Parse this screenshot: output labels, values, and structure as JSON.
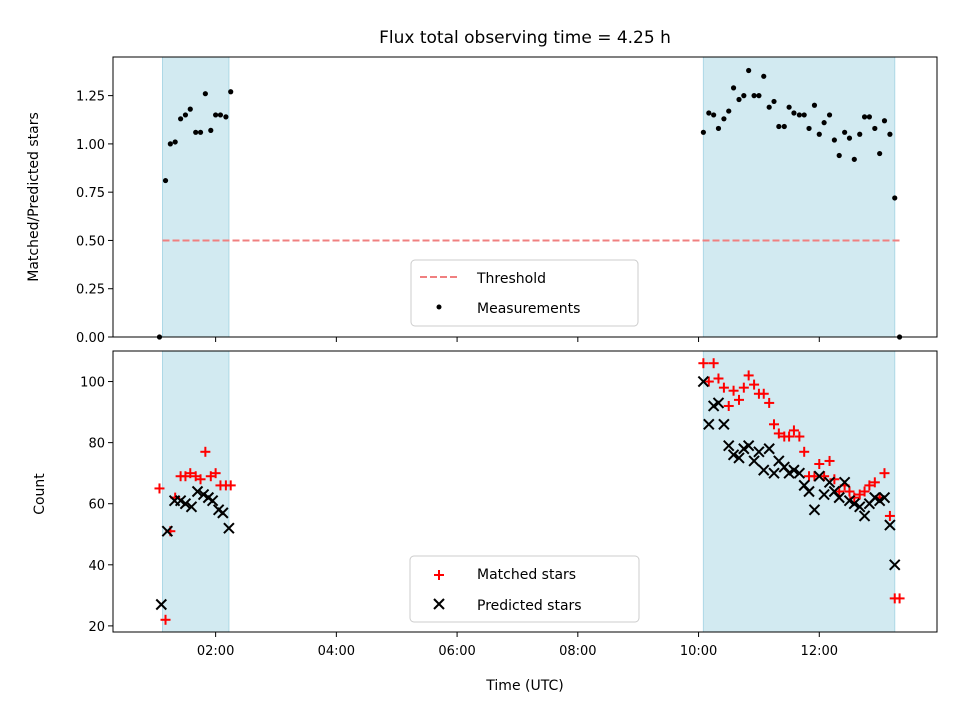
{
  "chart_data": {
    "type": "scatter",
    "title": "Flux total observing time = 4.25 h",
    "xlabel": "Time (UTC)",
    "x_unit": "hours_utc",
    "xlim": [
      0.3,
      13.95
    ],
    "x_ticks": [
      2,
      4,
      6,
      8,
      10,
      12
    ],
    "x_tick_labels": [
      "02:00",
      "04:00",
      "06:00",
      "08:00",
      "10:00",
      "12:00"
    ],
    "observing_windows": [
      [
        1.12,
        2.22
      ],
      [
        10.08,
        13.25
      ]
    ],
    "colors": {
      "window": "#add8e6",
      "threshold": "#f08080",
      "matched": "#ff0000",
      "predicted": "#000000",
      "measurement": "#000000"
    },
    "panels": [
      {
        "ylabel": "Matched/Predicted stars",
        "ylim": [
          0,
          1.45
        ],
        "y_ticks": [
          0.0,
          0.25,
          0.5,
          0.75,
          1.0,
          1.25
        ],
        "y_tick_labels": [
          "0.00",
          "0.25",
          "0.50",
          "0.75",
          "1.00",
          "1.25"
        ],
        "legend_position": "lower-center",
        "threshold": {
          "name": "Threshold",
          "value": 0.5,
          "x_range": [
            1.12,
            13.35
          ]
        },
        "series": [
          {
            "name": "Measurements",
            "marker": "dot",
            "points": [
              [
                1.07,
                0.0
              ],
              [
                1.17,
                0.81
              ],
              [
                1.25,
                1.0
              ],
              [
                1.33,
                1.01
              ],
              [
                1.42,
                1.13
              ],
              [
                1.5,
                1.15
              ],
              [
                1.58,
                1.18
              ],
              [
                1.67,
                1.06
              ],
              [
                1.75,
                1.06
              ],
              [
                1.83,
                1.26
              ],
              [
                1.92,
                1.07
              ],
              [
                2.0,
                1.15
              ],
              [
                2.08,
                1.15
              ],
              [
                2.17,
                1.14
              ],
              [
                2.25,
                1.27
              ],
              [
                10.08,
                1.06
              ],
              [
                10.17,
                1.16
              ],
              [
                10.25,
                1.15
              ],
              [
                10.33,
                1.08
              ],
              [
                10.42,
                1.13
              ],
              [
                10.5,
                1.17
              ],
              [
                10.58,
                1.29
              ],
              [
                10.67,
                1.23
              ],
              [
                10.75,
                1.25
              ],
              [
                10.83,
                1.38
              ],
              [
                10.92,
                1.25
              ],
              [
                11.0,
                1.25
              ],
              [
                11.08,
                1.35
              ],
              [
                11.17,
                1.19
              ],
              [
                11.25,
                1.22
              ],
              [
                11.33,
                1.09
              ],
              [
                11.42,
                1.09
              ],
              [
                11.5,
                1.19
              ],
              [
                11.58,
                1.16
              ],
              [
                11.67,
                1.15
              ],
              [
                11.75,
                1.15
              ],
              [
                11.83,
                1.08
              ],
              [
                11.92,
                1.2
              ],
              [
                12.0,
                1.05
              ],
              [
                12.08,
                1.11
              ],
              [
                12.17,
                1.15
              ],
              [
                12.25,
                1.02
              ],
              [
                12.33,
                0.94
              ],
              [
                12.42,
                1.06
              ],
              [
                12.5,
                1.03
              ],
              [
                12.58,
                0.92
              ],
              [
                12.67,
                1.05
              ],
              [
                12.75,
                1.14
              ],
              [
                12.83,
                1.14
              ],
              [
                12.92,
                1.08
              ],
              [
                13.0,
                0.95
              ],
              [
                13.08,
                1.12
              ],
              [
                13.17,
                1.05
              ],
              [
                13.25,
                0.72
              ],
              [
                13.33,
                0.0
              ]
            ]
          }
        ]
      },
      {
        "ylabel": "Count",
        "ylim": [
          18,
          110
        ],
        "y_ticks": [
          20,
          40,
          60,
          80,
          100
        ],
        "y_tick_labels": [
          "20",
          "40",
          "60",
          "80",
          "100"
        ],
        "legend_position": "lower-center",
        "series": [
          {
            "name": "Matched stars",
            "marker": "plus",
            "points": [
              [
                1.07,
                65
              ],
              [
                1.17,
                22
              ],
              [
                1.25,
                51
              ],
              [
                1.33,
                62
              ],
              [
                1.42,
                69
              ],
              [
                1.5,
                69
              ],
              [
                1.58,
                70
              ],
              [
                1.67,
                69
              ],
              [
                1.75,
                68
              ],
              [
                1.83,
                77
              ],
              [
                1.92,
                69
              ],
              [
                2.0,
                70
              ],
              [
                2.08,
                66
              ],
              [
                2.17,
                66
              ],
              [
                2.25,
                66
              ],
              [
                10.08,
                106
              ],
              [
                10.17,
                100
              ],
              [
                10.25,
                106
              ],
              [
                10.33,
                101
              ],
              [
                10.42,
                98
              ],
              [
                10.5,
                92
              ],
              [
                10.58,
                97
              ],
              [
                10.67,
                94
              ],
              [
                10.75,
                98
              ],
              [
                10.83,
                102
              ],
              [
                10.92,
                99
              ],
              [
                11.0,
                96
              ],
              [
                11.08,
                96
              ],
              [
                11.17,
                93
              ],
              [
                11.25,
                86
              ],
              [
                11.33,
                83
              ],
              [
                11.42,
                82
              ],
              [
                11.5,
                82
              ],
              [
                11.58,
                84
              ],
              [
                11.67,
                82
              ],
              [
                11.75,
                77
              ],
              [
                11.83,
                69
              ],
              [
                11.92,
                69
              ],
              [
                12.0,
                73
              ],
              [
                12.08,
                69
              ],
              [
                12.17,
                74
              ],
              [
                12.25,
                68
              ],
              [
                12.33,
                64
              ],
              [
                12.42,
                66
              ],
              [
                12.5,
                64
              ],
              [
                12.58,
                62
              ],
              [
                12.67,
                63
              ],
              [
                12.75,
                64
              ],
              [
                12.83,
                66
              ],
              [
                12.92,
                67
              ],
              [
                13.0,
                62
              ],
              [
                13.08,
                70
              ],
              [
                13.17,
                56
              ],
              [
                13.25,
                29
              ],
              [
                13.33,
                29
              ]
            ]
          },
          {
            "name": "Predicted stars",
            "marker": "x",
            "points": [
              [
                1.1,
                27
              ],
              [
                1.2,
                51
              ],
              [
                1.32,
                61
              ],
              [
                1.42,
                61
              ],
              [
                1.5,
                60
              ],
              [
                1.6,
                59
              ],
              [
                1.7,
                64
              ],
              [
                1.8,
                63
              ],
              [
                1.88,
                62
              ],
              [
                1.95,
                61
              ],
              [
                2.05,
                58
              ],
              [
                2.12,
                57
              ],
              [
                2.22,
                52
              ],
              [
                10.08,
                100
              ],
              [
                10.17,
                86
              ],
              [
                10.25,
                92
              ],
              [
                10.33,
                93
              ],
              [
                10.42,
                86
              ],
              [
                10.5,
                79
              ],
              [
                10.58,
                76
              ],
              [
                10.67,
                75
              ],
              [
                10.75,
                78
              ],
              [
                10.83,
                79
              ],
              [
                10.92,
                74
              ],
              [
                11.0,
                77
              ],
              [
                11.08,
                71
              ],
              [
                11.17,
                78
              ],
              [
                11.25,
                70
              ],
              [
                11.33,
                74
              ],
              [
                11.42,
                72
              ],
              [
                11.5,
                70
              ],
              [
                11.58,
                71
              ],
              [
                11.67,
                70
              ],
              [
                11.75,
                66
              ],
              [
                11.83,
                64
              ],
              [
                11.92,
                58
              ],
              [
                12.0,
                69
              ],
              [
                12.08,
                63
              ],
              [
                12.17,
                67
              ],
              [
                12.25,
                64
              ],
              [
                12.33,
                62
              ],
              [
                12.42,
                67
              ],
              [
                12.5,
                61
              ],
              [
                12.58,
                60
              ],
              [
                12.67,
                59
              ],
              [
                12.75,
                56
              ],
              [
                12.83,
                60
              ],
              [
                12.92,
                62
              ],
              [
                13.0,
                61
              ],
              [
                13.08,
                62
              ],
              [
                13.17,
                53
              ],
              [
                13.25,
                40
              ]
            ]
          }
        ]
      }
    ]
  }
}
